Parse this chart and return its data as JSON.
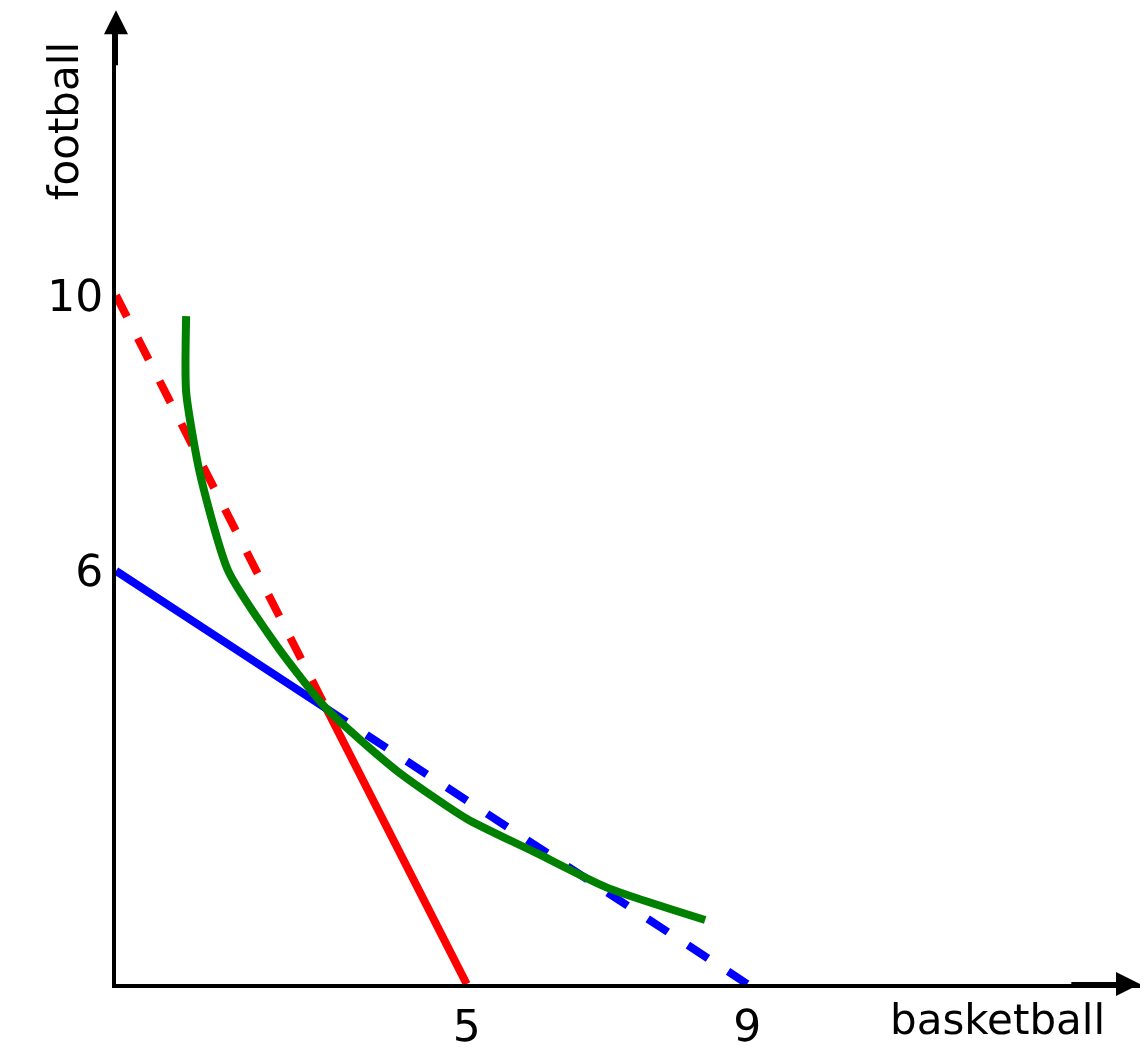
{
  "chart_data": {
    "type": "line",
    "xlabel": "basketball",
    "ylabel": "football",
    "xlim": [
      0,
      14.6
    ],
    "ylim": [
      0,
      14
    ],
    "xticks": [
      5,
      9
    ],
    "yticks": [
      6,
      10
    ],
    "series": [
      {
        "color": "#ff0000",
        "line_style": "dashed",
        "x": [
          0,
          3
        ],
        "values": [
          10,
          4
        ]
      },
      {
        "color": "#ff0000",
        "line_style": "solid",
        "x": [
          3,
          5
        ],
        "values": [
          4,
          0
        ]
      },
      {
        "color": "#0000ff",
        "line_style": "solid",
        "x": [
          0,
          3
        ],
        "values": [
          6,
          4
        ]
      },
      {
        "color": "#0000ff",
        "line_style": "dashed",
        "x": [
          3,
          9
        ],
        "values": [
          4,
          0
        ]
      },
      {
        "color": "#008000",
        "line_style": "solid",
        "x": [
          1.0,
          1.0,
          1.2,
          1.6,
          2.3,
          3,
          4,
          5,
          6,
          7,
          8.4
        ],
        "values": [
          9.7,
          8.6,
          7.4,
          6.0,
          4.9,
          4.0,
          3.1,
          2.4,
          1.9,
          1.4,
          0.93
        ]
      }
    ]
  }
}
